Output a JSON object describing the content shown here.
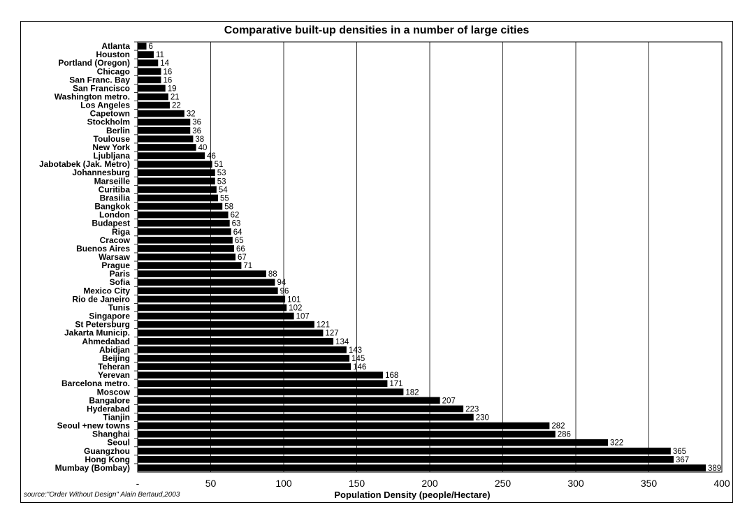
{
  "chart_data": {
    "type": "bar",
    "orientation": "horizontal",
    "title": "Comparative built-up densities in a number of large cities",
    "xlabel": "Population Density (people/Hectare)",
    "source": "source:\"Order Without Design\" Alain Bertaud,2003",
    "xlim": [
      0,
      400
    ],
    "xticks": [
      "-",
      "50",
      "100",
      "150",
      "200",
      "250",
      "300",
      "350",
      "400"
    ],
    "grid": "vertical",
    "bar_color": "#000000",
    "categories": [
      "Atlanta",
      "Houston",
      "Portland (Oregon)",
      "Chicago",
      "San Franc. Bay",
      "San Francisco",
      "Washington metro.",
      "Los Angeles",
      "Capetown",
      "Stockholm",
      "Berlin",
      "Toulouse",
      "New York",
      "Ljubljana",
      "Jabotabek (Jak. Metro)",
      "Johannesburg",
      "Marseille",
      "Curitiba",
      "Brasilia",
      "Bangkok",
      "London",
      "Budapest",
      "Riga",
      "Cracow",
      "Buenos Aires",
      "Warsaw",
      "Prague",
      "Paris",
      "Sofia",
      "Mexico City",
      "Rio de Janeiro",
      "Tunis",
      "Singapore",
      "St Petersburg",
      "Jakarta Municip.",
      "Ahmedabad",
      "Abidjan",
      "Beijing",
      "Teheran",
      "Yerevan",
      "Barcelona metro.",
      "Moscow",
      "Bangalore",
      "Hyderabad",
      "Tianjin",
      "Seoul +new towns",
      "Shanghai",
      "Seoul",
      "Guangzhou",
      "Hong Kong",
      "Mumbay (Bombay)"
    ],
    "values": [
      6,
      11,
      14,
      16,
      16,
      19,
      21,
      22,
      32,
      36,
      36,
      38,
      40,
      46,
      51,
      53,
      53,
      54,
      55,
      58,
      62,
      63,
      64,
      65,
      66,
      67,
      71,
      88,
      94,
      96,
      101,
      102,
      107,
      121,
      127,
      134,
      143,
      145,
      146,
      168,
      171,
      182,
      207,
      223,
      230,
      282,
      286,
      322,
      365,
      367,
      389
    ]
  }
}
